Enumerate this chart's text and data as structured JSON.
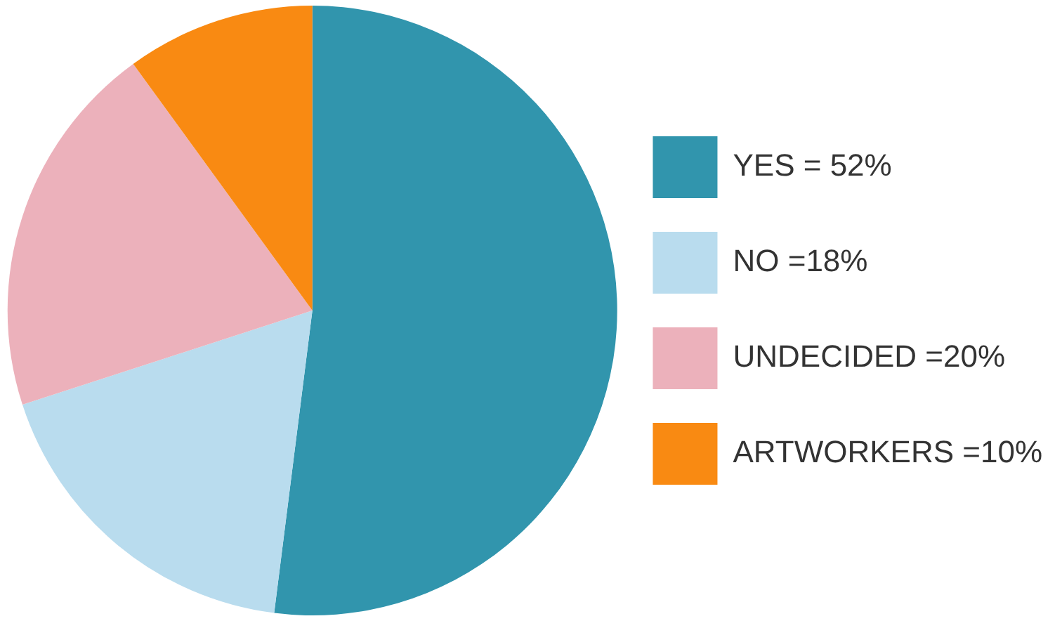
{
  "chart_data": {
    "type": "pie",
    "categories": [
      "YES = 52%",
      "NO =18%",
      "UNDECIDED =20%",
      "ARTWORKERS =10%"
    ],
    "values": [
      52,
      18,
      20,
      10
    ],
    "colors": [
      "#3195ad",
      "#b9dcee",
      "#ecb1bb",
      "#f98a12"
    ],
    "legend": "right"
  }
}
